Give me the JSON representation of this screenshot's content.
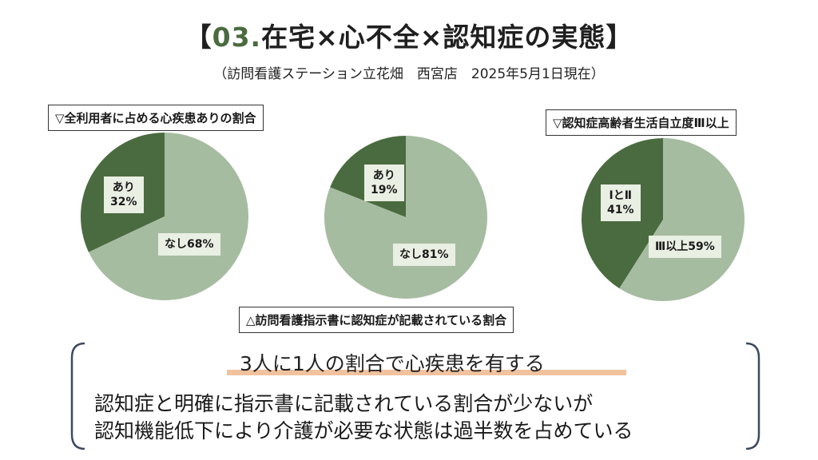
{
  "header": {
    "title_open": "【",
    "title_num": "03.",
    "title_text": "在宅×心不全×認知症の実態",
    "title_close": "】",
    "subtitle": "（訪問看護ステーション立花畑　西宮店　2025年5月1日現在）"
  },
  "labels": {
    "left": "▽全利用者に占める心疾患ありの割合",
    "right": "▽認知症高齢者生活自立度Ⅲ以上",
    "bottom": "△訪問看護指示書に認知症が記載されている割合"
  },
  "colors": {
    "dark": "#4a6b3f",
    "light": "#a6bca1",
    "label_bg": "#e9efe3",
    "highlight": "#f1c29e"
  },
  "chart_data": [
    {
      "type": "pie",
      "title": "▽全利用者に占める心疾患ありの割合",
      "slices": [
        {
          "name": "あり",
          "value": 32,
          "text": "あり\n32%"
        },
        {
          "name": "なし",
          "value": 68,
          "text": "なし68%"
        }
      ]
    },
    {
      "type": "pie",
      "title": "△訪問看護指示書に認知症が記載されている割合",
      "slices": [
        {
          "name": "あり",
          "value": 19,
          "text": "あり\n19%"
        },
        {
          "name": "なし",
          "value": 81,
          "text": "なし81%"
        }
      ]
    },
    {
      "type": "pie",
      "title": "▽認知症高齢者生活自立度Ⅲ以上",
      "slices": [
        {
          "name": "ⅠとⅡ",
          "value": 41,
          "text": "ⅠとⅡ\n41%"
        },
        {
          "name": "Ⅲ以上",
          "value": 59,
          "text": "Ⅲ以上59%"
        }
      ]
    }
  ],
  "message": {
    "highlight": "3人に1人の割合で心疾患を有する",
    "line1": "認知症と明確に指示書に記載されている割合が少ないが",
    "line2": "認知機能低下により介護が必要な状態は過半数を占めている"
  }
}
